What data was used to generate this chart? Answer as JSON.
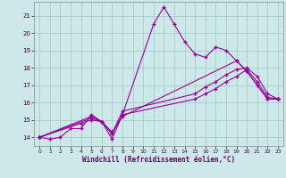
{
  "bg_color": "#cce8e8",
  "grid_color": "#aacccc",
  "line_color": "#990099",
  "xlabel": "Windchill (Refroidissement éolien,°C)",
  "xlim": [
    -0.5,
    23.5
  ],
  "ylim": [
    13.5,
    21.8
  ],
  "yticks": [
    14,
    15,
    16,
    17,
    18,
    19,
    20,
    21
  ],
  "xticks": [
    0,
    1,
    2,
    3,
    4,
    5,
    6,
    7,
    8,
    9,
    10,
    11,
    12,
    13,
    14,
    15,
    16,
    17,
    18,
    19,
    20,
    21,
    22,
    23
  ],
  "line1_x": [
    0,
    1,
    2,
    3,
    4,
    5,
    6,
    7,
    8,
    11,
    12,
    13,
    14,
    15,
    16,
    17,
    18,
    19,
    20,
    21,
    22,
    23
  ],
  "line1_y": [
    14.0,
    13.9,
    14.0,
    14.5,
    14.5,
    15.3,
    14.9,
    13.9,
    15.3,
    20.5,
    21.5,
    20.5,
    19.5,
    18.8,
    18.6,
    19.2,
    19.0,
    18.4,
    17.8,
    17.0,
    16.2,
    16.2
  ],
  "line2_x": [
    0,
    4,
    5,
    6,
    7,
    8,
    19,
    20,
    22,
    23
  ],
  "line2_y": [
    14.0,
    14.8,
    15.0,
    14.9,
    14.3,
    15.2,
    18.4,
    17.8,
    16.2,
    16.2
  ],
  "line3_x": [
    0,
    5,
    6,
    7,
    8,
    15,
    16,
    17,
    18,
    19,
    20,
    21,
    22,
    23
  ],
  "line3_y": [
    14.0,
    15.1,
    14.9,
    14.2,
    15.3,
    16.2,
    16.5,
    16.8,
    17.2,
    17.5,
    17.9,
    17.2,
    16.3,
    16.2
  ],
  "line4_x": [
    0,
    5,
    6,
    7,
    8,
    15,
    16,
    17,
    18,
    19,
    20,
    21,
    22,
    23
  ],
  "line4_y": [
    14.0,
    15.2,
    14.9,
    14.2,
    15.5,
    16.5,
    16.9,
    17.2,
    17.6,
    17.9,
    18.0,
    17.5,
    16.5,
    16.2
  ]
}
